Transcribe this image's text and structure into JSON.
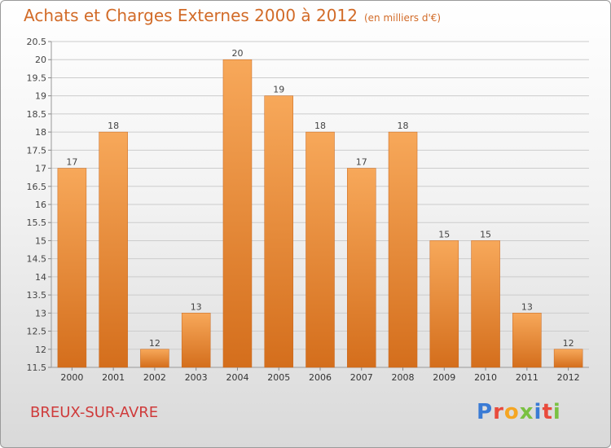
{
  "header": {
    "title": "Achats et Charges Externes 2000 à 2012",
    "unit": "(en milliers d'€)"
  },
  "footer": {
    "commune": "BREUX-SUR-AVRE",
    "logo_letters": [
      "P",
      "r",
      "o",
      "x",
      "i",
      "t",
      "i"
    ]
  },
  "colors": {
    "title": "#d26b28",
    "commune": "#cf3b3b",
    "bar_top": "#f7a85a",
    "bar_bottom": "#d46e1c",
    "grid": "#cccccc",
    "logo": [
      "#3a7bd5",
      "#e94b3c",
      "#f5a623",
      "#7ac142",
      "#3a7bd5",
      "#e94b3c",
      "#7ac142"
    ]
  },
  "chart_data": {
    "type": "bar",
    "categories": [
      "2000",
      "2001",
      "2002",
      "2003",
      "2004",
      "2005",
      "2006",
      "2007",
      "2008",
      "2009",
      "2010",
      "2011",
      "2012"
    ],
    "values": [
      17,
      18,
      12,
      13,
      20,
      19,
      18,
      17,
      18,
      15,
      15,
      13,
      12
    ],
    "ylim": [
      11.5,
      20.5
    ],
    "yticks": [
      "11.5",
      "12",
      "12.5",
      "13",
      "13.5",
      "14",
      "14.5",
      "15",
      "15.5",
      "16",
      "16.5",
      "17",
      "17.5",
      "18",
      "18.5",
      "19",
      "19.5",
      "20",
      "20.5"
    ],
    "grid": true,
    "xlabel": "",
    "ylabel": ""
  }
}
